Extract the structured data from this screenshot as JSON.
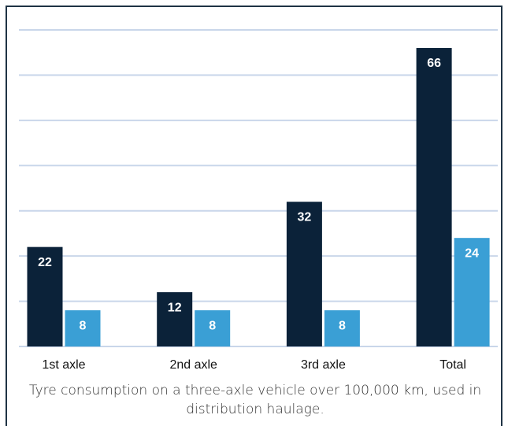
{
  "chart_data": {
    "type": "bar",
    "caption": "Tyre consumption on a three-axle vehicle over 100,000 km, used in distribution haulage.",
    "categories": [
      "1st axle",
      "2nd axle",
      "3rd axle",
      "Total"
    ],
    "series": [
      {
        "color": "#0b2239",
        "values": [
          22,
          12,
          32,
          66
        ]
      },
      {
        "color": "#3a9fd5",
        "values": [
          8,
          8,
          8,
          24
        ]
      }
    ],
    "ylim": [
      0,
      70
    ],
    "yticks": [
      0,
      10,
      20,
      30,
      40,
      50,
      60,
      70
    ],
    "grid": true
  }
}
